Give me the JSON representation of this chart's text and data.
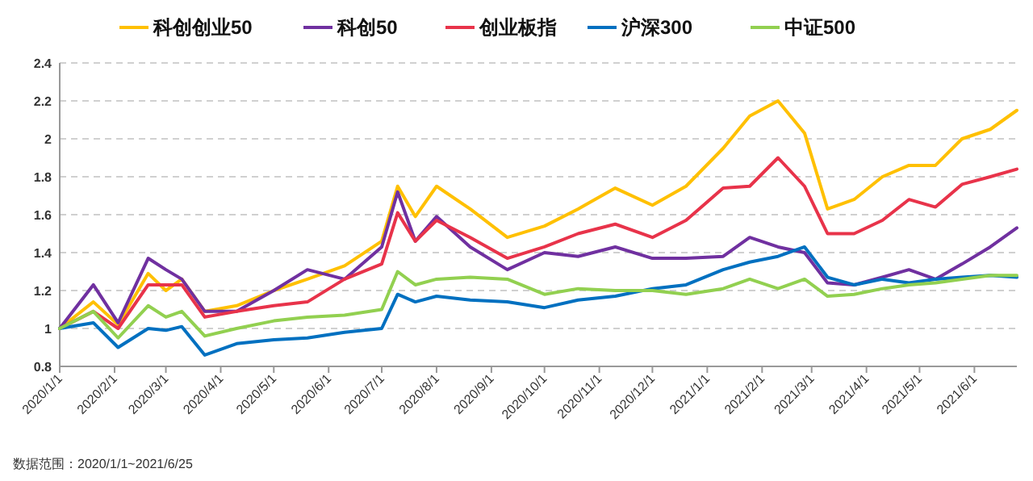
{
  "chart_data": {
    "type": "line",
    "x": [
      "2020-01-01",
      "2020-01-20",
      "2020-02-03",
      "2020-02-20",
      "2020-03-01",
      "2020-03-10",
      "2020-03-23",
      "2020-04-10",
      "2020-05-01",
      "2020-05-20",
      "2020-06-10",
      "2020-07-01",
      "2020-07-10",
      "2020-07-20",
      "2020-08-01",
      "2020-08-20",
      "2020-09-10",
      "2020-10-01",
      "2020-10-20",
      "2020-11-10",
      "2020-12-01",
      "2020-12-20",
      "2021-01-10",
      "2021-01-25",
      "2021-02-10",
      "2021-02-25",
      "2021-03-10",
      "2021-03-25",
      "2021-04-10",
      "2021-04-25",
      "2021-05-10",
      "2021-05-25",
      "2021-06-10",
      "2021-06-25"
    ],
    "series": [
      {
        "name": "科创创业50",
        "color": "#ffc000",
        "values": [
          1.0,
          1.14,
          1.02,
          1.29,
          1.2,
          1.26,
          1.09,
          1.12,
          1.2,
          1.26,
          1.33,
          1.46,
          1.75,
          1.59,
          1.75,
          1.63,
          1.48,
          1.54,
          1.63,
          1.74,
          1.65,
          1.75,
          1.95,
          2.12,
          2.2,
          2.03,
          1.63,
          1.68,
          1.8,
          1.86,
          1.86,
          2.0,
          2.05,
          2.15
        ]
      },
      {
        "name": "科创50",
        "color": "#7030a0",
        "values": [
          1.0,
          1.23,
          1.03,
          1.37,
          1.31,
          1.26,
          1.09,
          1.09,
          1.2,
          1.31,
          1.26,
          1.43,
          1.72,
          1.46,
          1.59,
          1.43,
          1.31,
          1.4,
          1.38,
          1.43,
          1.37,
          1.37,
          1.38,
          1.48,
          1.43,
          1.4,
          1.24,
          1.23,
          1.27,
          1.31,
          1.26,
          1.34,
          1.43,
          1.53
        ]
      },
      {
        "name": "创业板指",
        "color": "#e8334a",
        "values": [
          1.0,
          1.09,
          1.0,
          1.23,
          1.23,
          1.23,
          1.06,
          1.09,
          1.12,
          1.14,
          1.26,
          1.34,
          1.61,
          1.46,
          1.57,
          1.48,
          1.37,
          1.43,
          1.5,
          1.55,
          1.48,
          1.57,
          1.74,
          1.75,
          1.9,
          1.75,
          1.5,
          1.5,
          1.57,
          1.68,
          1.64,
          1.76,
          1.8,
          1.84
        ]
      },
      {
        "name": "沪深300",
        "color": "#0070c0",
        "values": [
          1.0,
          1.03,
          0.9,
          1.0,
          0.99,
          1.01,
          0.86,
          0.92,
          0.94,
          0.95,
          0.98,
          1.0,
          1.18,
          1.14,
          1.17,
          1.15,
          1.14,
          1.11,
          1.15,
          1.17,
          1.21,
          1.23,
          1.31,
          1.35,
          1.38,
          1.43,
          1.27,
          1.23,
          1.26,
          1.24,
          1.26,
          1.27,
          1.28,
          1.27
        ]
      },
      {
        "name": "中证500",
        "color": "#92d050",
        "values": [
          1.0,
          1.09,
          0.95,
          1.12,
          1.06,
          1.09,
          0.96,
          1.0,
          1.04,
          1.06,
          1.07,
          1.1,
          1.3,
          1.23,
          1.26,
          1.27,
          1.26,
          1.18,
          1.21,
          1.2,
          1.2,
          1.18,
          1.21,
          1.26,
          1.21,
          1.26,
          1.17,
          1.18,
          1.21,
          1.23,
          1.24,
          1.26,
          1.28,
          1.28
        ]
      }
    ],
    "xlim": [
      "2020-01-01",
      "2021-06-25"
    ],
    "xticks": [
      {
        "value": "2020-01-01",
        "label": "2020/1/1"
      },
      {
        "value": "2020-02-01",
        "label": "2020/2/1"
      },
      {
        "value": "2020-03-01",
        "label": "2020/3/1"
      },
      {
        "value": "2020-04-01",
        "label": "2020/4/1"
      },
      {
        "value": "2020-05-01",
        "label": "2020/5/1"
      },
      {
        "value": "2020-06-01",
        "label": "2020/6/1"
      },
      {
        "value": "2020-07-01",
        "label": "2020/7/1"
      },
      {
        "value": "2020-08-01",
        "label": "2020/8/1"
      },
      {
        "value": "2020-09-01",
        "label": "2020/9/1"
      },
      {
        "value": "2020-10-01",
        "label": "2020/10/1"
      },
      {
        "value": "2020-11-01",
        "label": "2020/11/1"
      },
      {
        "value": "2020-12-01",
        "label": "2020/12/1"
      },
      {
        "value": "2021-01-01",
        "label": "2021/1/1"
      },
      {
        "value": "2021-02-01",
        "label": "2021/2/1"
      },
      {
        "value": "2021-03-01",
        "label": "2021/3/1"
      },
      {
        "value": "2021-04-01",
        "label": "2021/4/1"
      },
      {
        "value": "2021-05-01",
        "label": "2021/5/1"
      },
      {
        "value": "2021-06-01",
        "label": "2021/6/1"
      }
    ],
    "ylim": [
      0.8,
      2.4
    ],
    "yticks": [
      0.8,
      1,
      1.2,
      1.4,
      1.6,
      1.8,
      2,
      2.2,
      2.4
    ],
    "grid": "y",
    "legend": "top",
    "annotations": [
      "数据范围：2020/1/1~2021/6/25"
    ]
  }
}
